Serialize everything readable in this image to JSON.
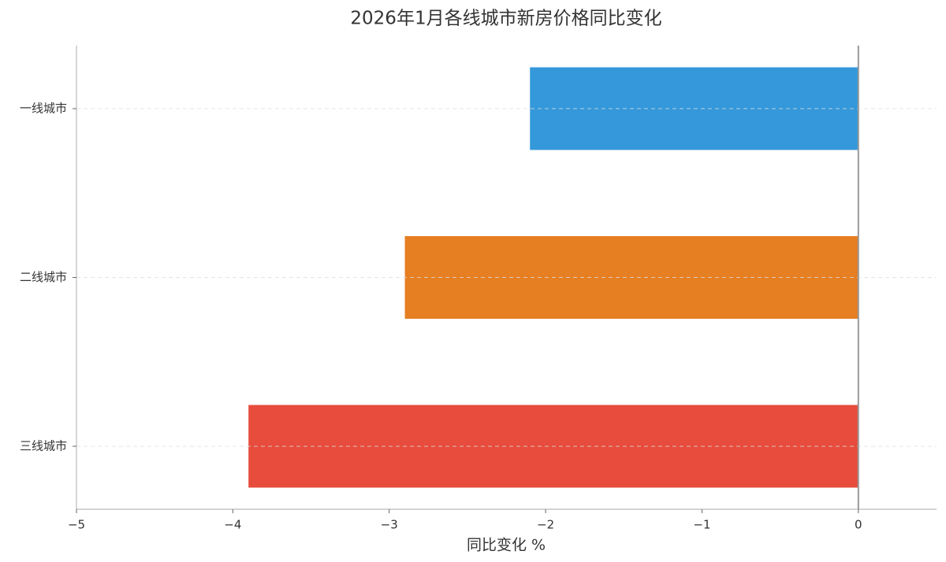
{
  "chart_data": {
    "type": "barh",
    "title": "2026年1月各线城市新房价格同比变化",
    "xlabel": "同比变化 %",
    "categories": [
      "一线城市",
      "二线城市",
      "三线城市"
    ],
    "values": [
      -2.1,
      -2.9,
      -3.9
    ],
    "colors": [
      "#3498db",
      "#e67e22",
      "#e74c3c"
    ],
    "xlim": [
      -5,
      0.5
    ],
    "xticks": [
      {
        "value": -5,
        "label": "−5"
      },
      {
        "value": -4,
        "label": "−4"
      },
      {
        "value": -3,
        "label": "−3"
      },
      {
        "value": -2,
        "label": "−2"
      },
      {
        "value": -1,
        "label": "−1"
      },
      0
    ],
    "grid": true,
    "zero_line": true
  }
}
